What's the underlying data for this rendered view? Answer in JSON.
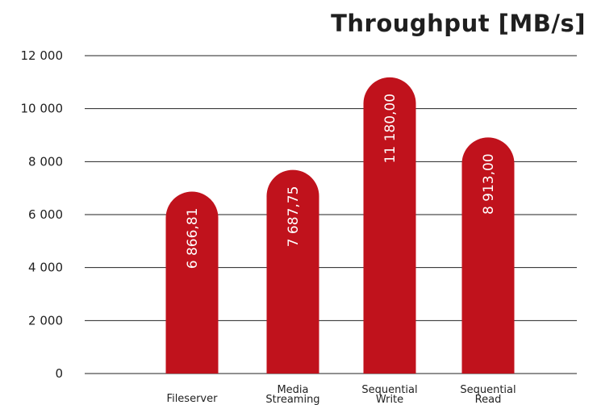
{
  "chart_data": {
    "type": "bar",
    "title": "Throughput  [MB/s]",
    "categories": [
      [
        "Fileserver"
      ],
      [
        "Media",
        "Streaming"
      ],
      [
        "Sequential",
        "Write"
      ],
      [
        "Sequential",
        "Read"
      ]
    ],
    "values": [
      6866.81,
      7687.75,
      11180.0,
      8913.0
    ],
    "value_labels": [
      "6 866,81",
      "7 687,75",
      "11 180,00",
      "8 913,00"
    ],
    "yticks": [
      0,
      2000,
      4000,
      6000,
      8000,
      10000,
      12000
    ],
    "ytick_labels": [
      "0",
      "2 000",
      "4 000",
      "6 000",
      "8 000",
      "10 000",
      "12 000"
    ],
    "ylim": [
      0,
      12000
    ],
    "xlabel": "",
    "ylabel": "",
    "grid": true,
    "legend": "none",
    "bar_color": "#c0121c",
    "grid_color": "#222222"
  }
}
